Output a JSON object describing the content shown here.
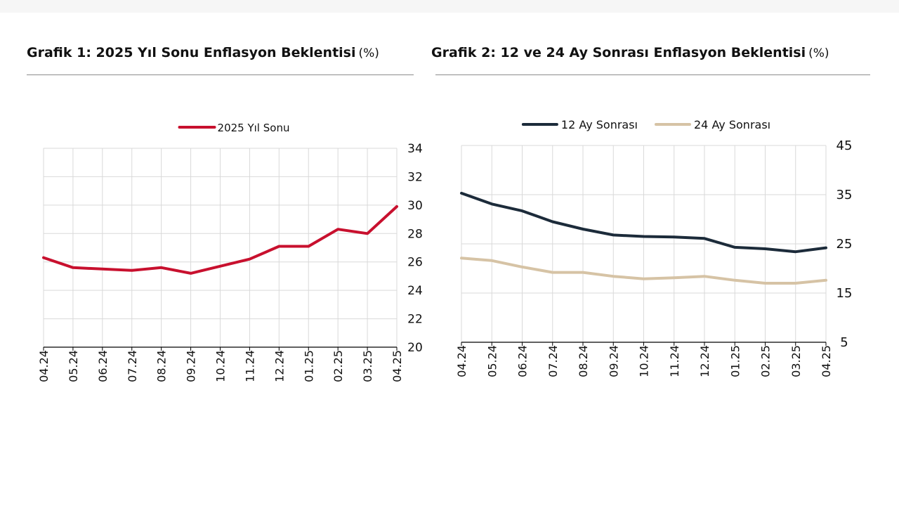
{
  "charts": [
    {
      "title": "Grafik 1: 2025 Yıl Sonu Enflasyon Beklentisi",
      "unit": "(%)"
    },
    {
      "title": "Grafik 2: 12 ve 24 Ay Sonrası Enflasyon Beklentisi",
      "unit": "(%)"
    }
  ],
  "chart_data": [
    {
      "type": "line",
      "title": "Grafik 1: 2025 Yıl Sonu Enflasyon Beklentisi",
      "ylabel": "(%)",
      "x": [
        "04.24",
        "05.24",
        "06.24",
        "07.24",
        "08.24",
        "09.24",
        "10.24",
        "11.24",
        "12.24",
        "01.25",
        "02.25",
        "03.25",
        "04.25"
      ],
      "ylim": [
        20,
        34
      ],
      "yticks": [
        20,
        22,
        24,
        26,
        28,
        30,
        32,
        34
      ],
      "y_axis_side": "right",
      "grid": true,
      "legend": "top-center",
      "series": [
        {
          "name": "2025 Yıl Sonu",
          "color": "#c8102e",
          "values": [
            26.3,
            25.6,
            25.5,
            25.4,
            25.6,
            25.2,
            25.7,
            26.2,
            27.1,
            27.1,
            28.3,
            28.0,
            29.9
          ]
        }
      ]
    },
    {
      "type": "line",
      "title": "Grafik 2: 12 ve 24 Ay Sonrası Enflasyon Beklentisi",
      "ylabel": "(%)",
      "x": [
        "04.24",
        "05.24",
        "06.24",
        "07.24",
        "08.24",
        "09.24",
        "10.24",
        "11.24",
        "12.24",
        "01.25",
        "02.25",
        "03.25",
        "04.25"
      ],
      "ylim": [
        5,
        45
      ],
      "yticks": [
        5,
        15,
        25,
        35,
        45
      ],
      "y_axis_side": "right",
      "grid": true,
      "legend": "top-center",
      "series": [
        {
          "name": "12 Ay Sonrası",
          "color": "#1c2b3a",
          "values": [
            35.3,
            33.1,
            31.7,
            29.5,
            28.0,
            26.8,
            26.5,
            26.4,
            26.1,
            24.3,
            24.0,
            23.4,
            24.2
          ]
        },
        {
          "name": "24 Ay Sonrası",
          "color": "#d6c3a5",
          "values": [
            22.1,
            21.6,
            20.3,
            19.2,
            19.2,
            18.4,
            17.9,
            18.1,
            18.4,
            17.6,
            17.0,
            17.0,
            17.6
          ]
        }
      ]
    }
  ]
}
